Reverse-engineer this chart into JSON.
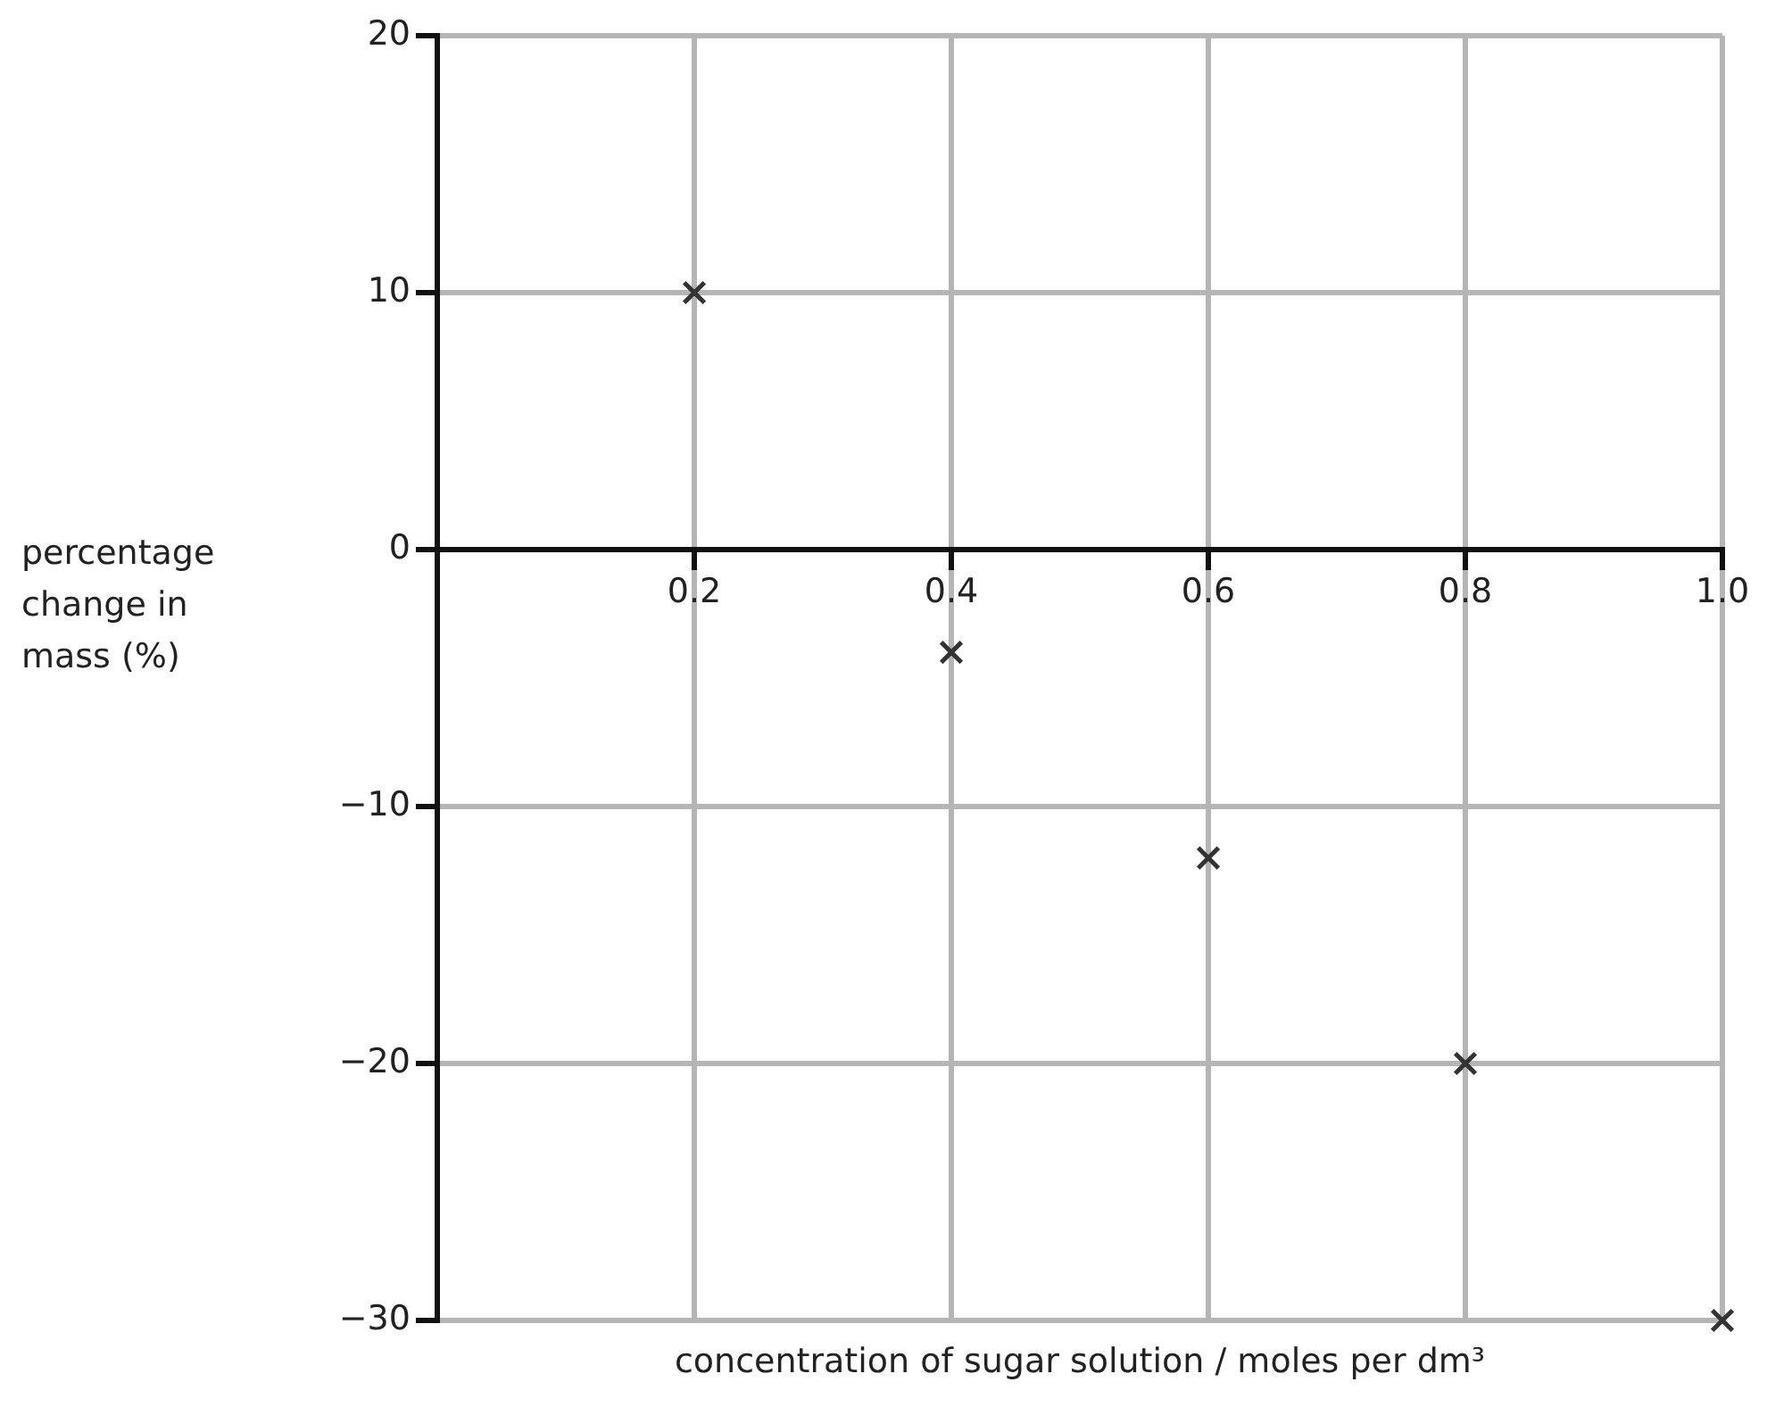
{
  "chart_data": {
    "type": "scatter",
    "xlabel": "concentration of sugar solution / moles per dm³",
    "ylabel": "percentage change in mass (%)",
    "x": [
      0.2,
      0.4,
      0.6,
      0.8,
      1.0
    ],
    "series": [
      {
        "color": "#333333",
        "values": [
          10,
          -4,
          -12,
          -20,
          -30
        ]
      }
    ],
    "marker": "cross",
    "grid": true,
    "legend": false,
    "xlim": [
      0,
      1
    ],
    "xticks": [
      0.2,
      0.4,
      0.6,
      0.8,
      {
        "value": 1,
        "label": "1.0"
      }
    ],
    "ylim": [
      -30,
      20
    ],
    "yticks": [
      {
        "value": -30,
        "label": "−30"
      },
      {
        "value": -20,
        "label": "−20"
      },
      {
        "value": -10,
        "label": "−10"
      },
      0,
      10,
      20
    ]
  }
}
